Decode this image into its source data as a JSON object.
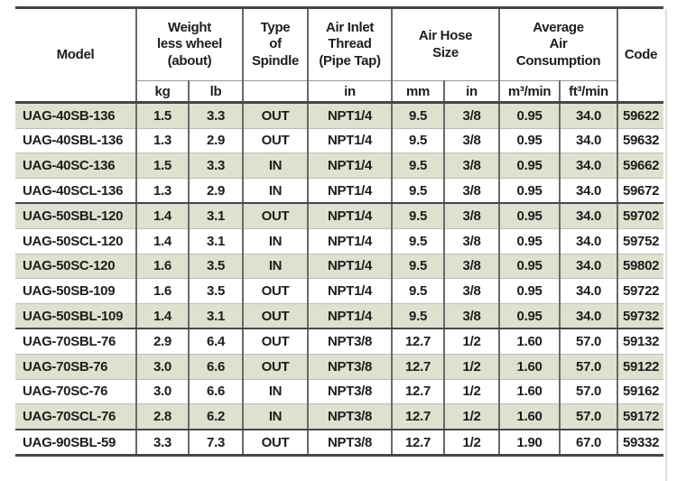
{
  "appearance": {
    "background_color": "#ffffff",
    "shaded_row_color": "#e0e0d0",
    "text_color": "#1d1d1b",
    "dark_border_color": "#454547",
    "light_border_color": "#bdbdb4",
    "vertical_border_color": "#69696d"
  },
  "table": {
    "header": {
      "model": "Model",
      "weight": "Weight\nless wheel\n(about)",
      "spindle": "Type\nof\nSpindle",
      "air_inlet": "Air Inlet\nThread\n(Pipe Tap)",
      "air_hose": "Air Hose\nSize",
      "consumption": "Average\nAir\nConsumption",
      "code": "Code"
    },
    "subheader": [
      "kg",
      "lb",
      "",
      "in",
      "mm",
      "in",
      "m³/min",
      "ft³/min"
    ],
    "rows": [
      {
        "model": "UAG-40SB-136",
        "kg": "1.5",
        "lb": "3.3",
        "spindle": "OUT",
        "inlet": "NPT1/4",
        "hose_mm": "9.5",
        "hose_in": "3/8",
        "m3min": "0.95",
        "ft3min": "34.0",
        "code": "59622",
        "shaded": true,
        "group_end": false
      },
      {
        "model": "UAG-40SBL-136",
        "kg": "1.3",
        "lb": "2.9",
        "spindle": "OUT",
        "inlet": "NPT1/4",
        "hose_mm": "9.5",
        "hose_in": "3/8",
        "m3min": "0.95",
        "ft3min": "34.0",
        "code": "59632",
        "shaded": false,
        "group_end": false
      },
      {
        "model": "UAG-40SC-136",
        "kg": "1.5",
        "lb": "3.3",
        "spindle": "IN",
        "inlet": "NPT1/4",
        "hose_mm": "9.5",
        "hose_in": "3/8",
        "m3min": "0.95",
        "ft3min": "34.0",
        "code": "59662",
        "shaded": true,
        "group_end": false
      },
      {
        "model": "UAG-40SCL-136",
        "kg": "1.3",
        "lb": "2.9",
        "spindle": "IN",
        "inlet": "NPT1/4",
        "hose_mm": "9.5",
        "hose_in": "3/8",
        "m3min": "0.95",
        "ft3min": "34.0",
        "code": "59672",
        "shaded": false,
        "group_end": true
      },
      {
        "model": "UAG-50SBL-120",
        "kg": "1.4",
        "lb": "3.1",
        "spindle": "OUT",
        "inlet": "NPT1/4",
        "hose_mm": "9.5",
        "hose_in": "3/8",
        "m3min": "0.95",
        "ft3min": "34.0",
        "code": "59702",
        "shaded": true,
        "group_end": false
      },
      {
        "model": "UAG-50SCL-120",
        "kg": "1.4",
        "lb": "3.1",
        "spindle": "IN",
        "inlet": "NPT1/4",
        "hose_mm": "9.5",
        "hose_in": "3/8",
        "m3min": "0.95",
        "ft3min": "34.0",
        "code": "59752",
        "shaded": false,
        "group_end": false
      },
      {
        "model": "UAG-50SC-120",
        "kg": "1.6",
        "lb": "3.5",
        "spindle": "IN",
        "inlet": "NPT1/4",
        "hose_mm": "9.5",
        "hose_in": "3/8",
        "m3min": "0.95",
        "ft3min": "34.0",
        "code": "59802",
        "shaded": true,
        "group_end": false
      },
      {
        "model": "UAG-50SB-109",
        "kg": "1.6",
        "lb": "3.5",
        "spindle": "OUT",
        "inlet": "NPT1/4",
        "hose_mm": "9.5",
        "hose_in": "3/8",
        "m3min": "0.95",
        "ft3min": "34.0",
        "code": "59722",
        "shaded": false,
        "group_end": false
      },
      {
        "model": "UAG-50SBL-109",
        "kg": "1.4",
        "lb": "3.1",
        "spindle": "OUT",
        "inlet": "NPT1/4",
        "hose_mm": "9.5",
        "hose_in": "3/8",
        "m3min": "0.95",
        "ft3min": "34.0",
        "code": "59732",
        "shaded": true,
        "group_end": true
      },
      {
        "model": "UAG-70SBL-76",
        "kg": "2.9",
        "lb": "6.4",
        "spindle": "OUT",
        "inlet": "NPT3/8",
        "hose_mm": "12.7",
        "hose_in": "1/2",
        "m3min": "1.60",
        "ft3min": "57.0",
        "code": "59132",
        "shaded": false,
        "group_end": false
      },
      {
        "model": "UAG-70SB-76",
        "kg": "3.0",
        "lb": "6.6",
        "spindle": "OUT",
        "inlet": "NPT3/8",
        "hose_mm": "12.7",
        "hose_in": "1/2",
        "m3min": "1.60",
        "ft3min": "57.0",
        "code": "59122",
        "shaded": true,
        "group_end": false
      },
      {
        "model": "UAG-70SC-76",
        "kg": "3.0",
        "lb": "6.6",
        "spindle": "IN",
        "inlet": "NPT3/8",
        "hose_mm": "12.7",
        "hose_in": "1/2",
        "m3min": "1.60",
        "ft3min": "57.0",
        "code": "59162",
        "shaded": false,
        "group_end": false
      },
      {
        "model": "UAG-70SCL-76",
        "kg": "2.8",
        "lb": "6.2",
        "spindle": "IN",
        "inlet": "NPT3/8",
        "hose_mm": "12.7",
        "hose_in": "1/2",
        "m3min": "1.60",
        "ft3min": "57.0",
        "code": "59172",
        "shaded": true,
        "group_end": true
      },
      {
        "model": "UAG-90SBL-59",
        "kg": "3.3",
        "lb": "7.3",
        "spindle": "OUT",
        "inlet": "NPT3/8",
        "hose_mm": "12.7",
        "hose_in": "1/2",
        "m3min": "1.90",
        "ft3min": "67.0",
        "code": "59332",
        "shaded": false,
        "group_end": false
      }
    ]
  }
}
